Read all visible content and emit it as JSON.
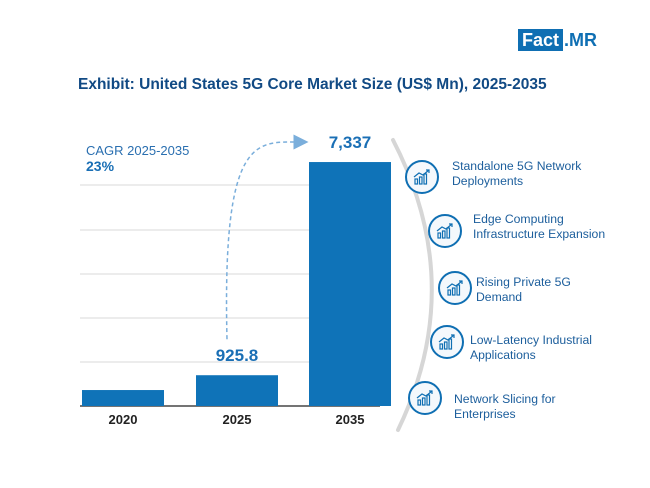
{
  "logo": {
    "part1": "Fact",
    "dot": ".",
    "part2": "MR"
  },
  "title": "Exhibit: United States 5G Core Market Size (US$ Mn), 2025-2035",
  "cagr": {
    "label": "CAGR 2025-2035",
    "value": "23%"
  },
  "colors": {
    "bar": "#0f73b8",
    "title": "#114a84",
    "accent": "#1a6fb5",
    "arrow": "#7aaedb"
  },
  "chart_data": {
    "type": "bar",
    "title": "Exhibit: United States 5G Core Market Size (US$ Mn), 2025-2035",
    "xlabel": "",
    "ylabel": "US$ Mn",
    "categories": [
      "2020",
      "2025",
      "2035"
    ],
    "values": [
      480,
      925.8,
      7337
    ],
    "data_labels": [
      "",
      "925.8",
      "7,337"
    ],
    "ylim": [
      0,
      8000
    ],
    "grid": true
  },
  "drivers": [
    {
      "label": "Standalone 5G Network\nDeployments",
      "icon": "growth-chart-icon"
    },
    {
      "label": "Edge Computing\nInfrastructure Expansion",
      "icon": "growth-chart-icon"
    },
    {
      "label": "Rising Private 5G\nDemand",
      "icon": "growth-chart-icon"
    },
    {
      "label": "Low-Latency Industrial\nApplications",
      "icon": "growth-chart-icon"
    },
    {
      "label": "Network Slicing for\nEnterprises",
      "icon": "growth-chart-icon"
    }
  ]
}
